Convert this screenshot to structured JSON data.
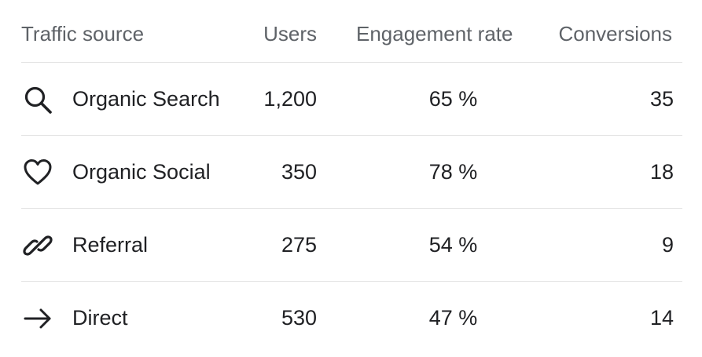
{
  "headers": {
    "source": "Traffic source",
    "users": "Users",
    "engagement": "Engagement rate",
    "conversions": "Conversions"
  },
  "rows": [
    {
      "icon": "search-icon",
      "source": "Organic Search",
      "users": "1,200",
      "engagement": "65 %",
      "conversions": "35"
    },
    {
      "icon": "heart-icon",
      "source": "Organic Social",
      "users": "350",
      "engagement": "78 %",
      "conversions": "18"
    },
    {
      "icon": "link-icon",
      "source": "Referral",
      "users": "275",
      "engagement": "54 %",
      "conversions": "9"
    },
    {
      "icon": "arrow-right-icon",
      "source": "Direct",
      "users": "530",
      "engagement": "47 %",
      "conversions": "14"
    }
  ],
  "colors": {
    "text": "#202124",
    "header_text": "#5f6368",
    "divider": "#e3e3e3"
  }
}
